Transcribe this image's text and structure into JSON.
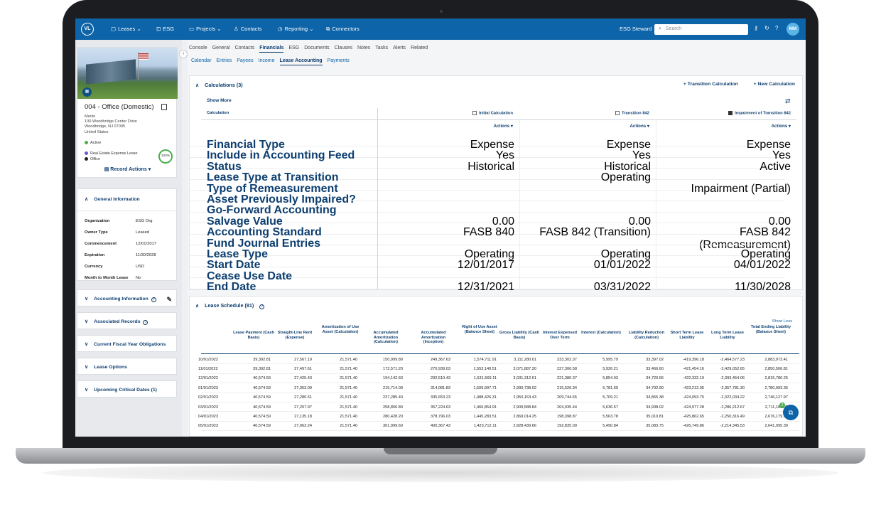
{
  "topnav": {
    "logo": "VL",
    "items": [
      {
        "icon": "document-icon",
        "glyph": "▢",
        "label": "Leases",
        "caret": "⌄"
      },
      {
        "icon": "esg-icon",
        "glyph": "⊡",
        "label": "ESG",
        "caret": ""
      },
      {
        "icon": "folder-icon",
        "glyph": "▭",
        "label": "Projects",
        "caret": "⌄"
      },
      {
        "icon": "contacts-icon",
        "glyph": "♙",
        "label": "Contacts",
        "caret": ""
      },
      {
        "icon": "reporting-icon",
        "glyph": "◷",
        "label": "Reporting",
        "caret": "⌄"
      },
      {
        "icon": "connectors-icon",
        "glyph": "⧉",
        "label": "Connectors",
        "caret": ""
      }
    ],
    "steward": "ESG Steward",
    "search_placeholder": "Search",
    "avatar": "MM"
  },
  "property": {
    "title": "004 - Office (Domestic)",
    "address": [
      "Menlo",
      "100 Woodbridge Center Drive",
      "Woodbridge, NJ 07095",
      "United States"
    ],
    "status": "Active",
    "tags": [
      "Real Estate Expense Lease",
      "Office"
    ],
    "completion": "100%",
    "record_actions": "Record Actions"
  },
  "general": {
    "title": "General Information",
    "rows": [
      {
        "k": "Organization",
        "v": "ESG Org"
      },
      {
        "k": "Owner Type",
        "v": "Leased"
      },
      {
        "k": "Commencement",
        "v": "12/01/2017"
      },
      {
        "k": "Expiration",
        "v": "11/30/2028"
      },
      {
        "k": "Currency",
        "v": "USD"
      },
      {
        "k": "Month to Month Lease",
        "v": "No"
      }
    ]
  },
  "side_panels": [
    "Accounting Information",
    "Associated Records",
    "Current Fiscal Year Obligations",
    "Lease Options",
    "Upcoming Critical Dates (1)"
  ],
  "tabs": [
    "Console",
    "General",
    "Contacts",
    "Financials",
    "ESG",
    "Documents",
    "Clauses",
    "Notes",
    "Tasks",
    "Alerts",
    "Related"
  ],
  "subtabs": [
    "Calendar",
    "Entries",
    "Payees",
    "Income",
    "Lease Accounting",
    "Payments"
  ],
  "calculations": {
    "title": "Calculations (3)",
    "transition": "+ Transition Calculation",
    "new": "+ New Calculation",
    "show_more": "Show More",
    "calc_label": "Calculation",
    "columns": [
      "Initial Calculation",
      "Transition 842",
      "Impairment of Transition 842"
    ],
    "actions": "Actions",
    "rows": [
      {
        "label": "Financial Type",
        "v": [
          "Expense",
          "Expense",
          "Expense"
        ]
      },
      {
        "label": "Include in Accounting Feed",
        "v": [
          "Yes",
          "Yes",
          "Yes"
        ]
      },
      {
        "label": "Status",
        "v": [
          "Historical",
          "Historical",
          "Active"
        ]
      },
      {
        "label": "Lease Type at Transition",
        "v": [
          "",
          "Operating",
          ""
        ]
      },
      {
        "label": "Type of Remeasurement",
        "v": [
          "",
          "",
          "Impairment (Partial)"
        ]
      },
      {
        "label": "Asset Previously Impaired?",
        "v": [
          "",
          "",
          ""
        ]
      },
      {
        "label": "Go-Forward Accounting",
        "v": [
          "",
          "",
          ""
        ]
      },
      {
        "label": "Salvage Value",
        "v": [
          "0.00",
          "0.00",
          "0.00"
        ]
      },
      {
        "label": "Accounting Standard",
        "v": [
          "FASB 840",
          "FASB 842 (Transition)",
          "FASB 842 (Remeasurement)"
        ]
      },
      {
        "label": "Fund Journal Entries",
        "v": [
          "",
          "",
          ""
        ]
      },
      {
        "label": "Lease Type",
        "v": [
          "Operating",
          "Operating",
          "Operating"
        ]
      },
      {
        "label": "Start Date",
        "v": [
          "12/01/2017",
          "01/01/2022",
          "04/01/2022"
        ]
      },
      {
        "label": "Cease Use Date",
        "v": [
          "",
          "",
          ""
        ]
      },
      {
        "label": "End Date",
        "v": [
          "12/31/2021",
          "03/31/2022",
          "11/30/2028"
        ]
      }
    ]
  },
  "schedule": {
    "title": "Lease Schedule (81)",
    "show_less": "Show Less",
    "headers": [
      "Lease Payment (Cash Basis)",
      "Straight-Line Rent (Expense)",
      "Amortization of Use Asset (Calculation)",
      "Accumulated Amortization (Calculation)",
      "Accumulated Amortization (Inception)",
      "Right of Use Asset (Balance Sheet)",
      "Gross Liability (Cash Basis)",
      "Interest Expensed Over Term",
      "Interest (Calculation)",
      "Liability Reduction (Calculation)",
      "Short Term Lease Liability",
      "Long Term Lease Liability",
      "Total Ending Liability (Balance Sheet)"
    ],
    "rows": [
      [
        "10/01/2022",
        "39,392.81",
        "27,567.19",
        "21,571.40",
        "150,999.80",
        "249,367.63",
        "1,574,711.91",
        "3,111,280.01",
        "233,302.37",
        "5,995.79",
        "33,397.02",
        "-419,396.18",
        "-2,464,577.23",
        "2,883,973.41"
      ],
      [
        "11/01/2022",
        "39,392.81",
        "27,497.61",
        "21,571.40",
        "172,571.20",
        "270,939.03",
        "1,553,140.51",
        "3,071,887.20",
        "227,306.58",
        "5,926.21",
        "33,466.60",
        "-421,454.16",
        "-2,429,052.65",
        "2,850,506.81"
      ],
      [
        "12/01/2022",
        "40,574.59",
        "27,425.43",
        "21,571.40",
        "194,142.60",
        "292,510.43",
        "1,531,569.11",
        "3,031,312.61",
        "221,380.37",
        "5,854.03",
        "34,720.56",
        "-422,332.19",
        "-2,393,454.06",
        "2,815,786.25"
      ],
      [
        "01/01/2023",
        "40,574.59",
        "27,353.09",
        "21,571.40",
        "215,714.00",
        "314,081.83",
        "1,509,997.71",
        "2,990,738.02",
        "215,526.34",
        "5,781.69",
        "34,792.90",
        "-423,212.05",
        "-2,357,781.30",
        "2,780,993.35"
      ],
      [
        "02/01/2023",
        "40,574.59",
        "27,280.61",
        "21,571.40",
        "237,285.40",
        "335,653.23",
        "1,488,426.31",
        "2,950,163.43",
        "209,744.65",
        "5,709.21",
        "34,865.38",
        "-424,093.75",
        "-2,322,034.22",
        "2,746,127.97"
      ],
      [
        "03/01/2023",
        "40,574.59",
        "27,207.97",
        "21,571.40",
        "258,856.80",
        "357,224.63",
        "1,466,854.91",
        "2,909,588.84",
        "204,035.44",
        "5,636.57",
        "34,938.02",
        "-424,977.28",
        "-2,286,212.67",
        "2,711,189.95"
      ],
      [
        "04/01/2023",
        "40,574.59",
        "27,135.18",
        "21,571.40",
        "280,428.20",
        "378,796.03",
        "1,445,283.51",
        "2,869,014.25",
        "198,398.87",
        "5,563.78",
        "35,010.81",
        "-425,862.65",
        "-2,250,316.49",
        "2,676,179.14"
      ],
      [
        "05/01/2023",
        "40,574.59",
        "27,062.24",
        "21,571.40",
        "301,999.60",
        "400,367.43",
        "1,423,712.11",
        "2,828,439.66",
        "192,835.09",
        "5,490.84",
        "35,083.75",
        "-426,749.86",
        "-2,214,345.53",
        "2,641,095.39"
      ]
    ]
  },
  "fab_badge": "2"
}
